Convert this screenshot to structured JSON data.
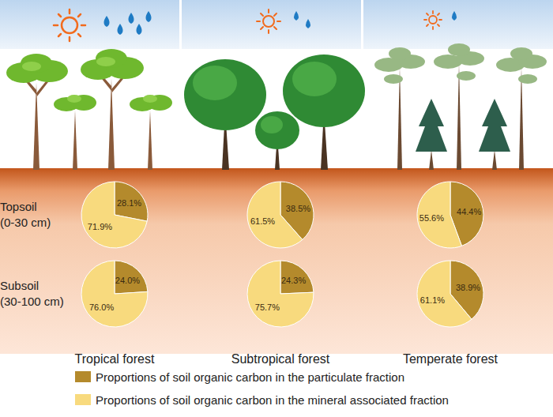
{
  "chart_data": {
    "type": "pie",
    "columns": [
      "Tropical forest",
      "Subtropical forest",
      "Temperate forest"
    ],
    "rows": [
      [
        "Topsoil",
        "(0-30 cm)"
      ],
      [
        "Subsoil",
        "(30-100 cm)"
      ]
    ],
    "categories": [
      "Proportions of soil organic carbon in the particulate fraction",
      "Proportions of soil organic carbon in the mineral associated fraction"
    ],
    "colors": [
      "#b48a2c",
      "#f8da7e"
    ],
    "values": [
      [
        [
          28.1,
          71.9
        ],
        [
          38.5,
          61.5
        ],
        [
          44.4,
          55.6
        ]
      ],
      [
        [
          24.0,
          76.0
        ],
        [
          24.3,
          75.7
        ],
        [
          38.9,
          61.1
        ]
      ]
    ],
    "value_labels": [
      [
        [
          "28.1%",
          "71.9%"
        ],
        [
          "38.5%",
          "61.5%"
        ],
        [
          "44.4%",
          "55.6%"
        ]
      ],
      [
        [
          "24.0%",
          "76.0%"
        ],
        [
          "24.3%",
          "75.7%"
        ],
        [
          "38.9%",
          "61.1%"
        ]
      ]
    ],
    "data_labels": true,
    "legend": "bottom"
  }
}
